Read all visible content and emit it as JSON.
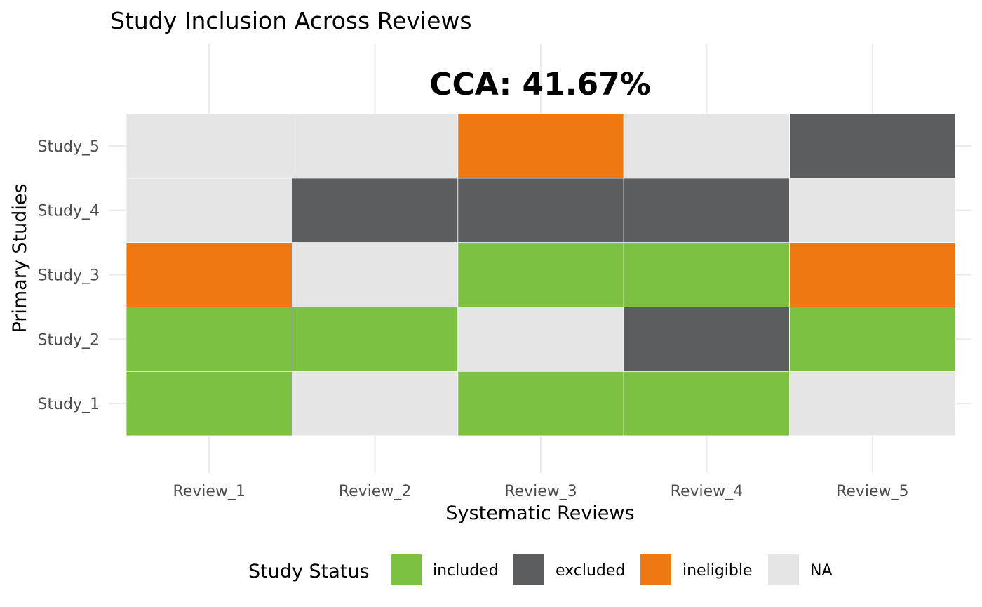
{
  "chart_data": {
    "type": "heatmap",
    "title": "Study Inclusion Across Reviews",
    "annotation": "CCA: 41.67%",
    "xlabel": "Systematic Reviews",
    "ylabel": "Primary Studies",
    "x_categories": [
      "Review_1",
      "Review_2",
      "Review_3",
      "Review_4",
      "Review_5"
    ],
    "y_categories": [
      "Study_1",
      "Study_2",
      "Study_3",
      "Study_4",
      "Study_5"
    ],
    "cells": [
      [
        "included",
        "NA",
        "included",
        "included",
        "NA"
      ],
      [
        "included",
        "included",
        "NA",
        "excluded",
        "included"
      ],
      [
        "ineligible",
        "NA",
        "included",
        "included",
        "ineligible"
      ],
      [
        "NA",
        "excluded",
        "excluded",
        "excluded",
        "NA"
      ],
      [
        "NA",
        "NA",
        "ineligible",
        "NA",
        "excluded"
      ]
    ],
    "legend": {
      "title": "Study Status",
      "position": "bottom",
      "entries": [
        {
          "label": "included",
          "color": "#7CC142"
        },
        {
          "label": "excluded",
          "color": "#5C5D5F"
        },
        {
          "label": "ineligible",
          "color": "#EF7813"
        },
        {
          "label": "NA",
          "color": "#E5E5E5"
        }
      ]
    },
    "grid": true
  }
}
